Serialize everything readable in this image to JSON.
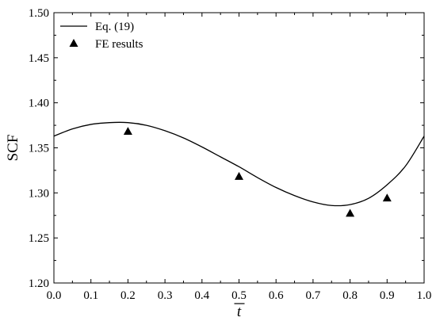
{
  "chart_data": {
    "type": "line",
    "title": "",
    "xlabel": "t",
    "xlabel_overbar": true,
    "ylabel": "SCF",
    "xlim": [
      0.0,
      1.0
    ],
    "ylim": [
      1.2,
      1.5
    ],
    "xticks": [
      "0.0",
      "0.1",
      "0.2",
      "0.3",
      "0.4",
      "0.5",
      "0.6",
      "0.7",
      "0.8",
      "0.9",
      "1.0"
    ],
    "yticks": [
      "1.20",
      "1.25",
      "1.30",
      "1.35",
      "1.40",
      "1.45",
      "1.50"
    ],
    "grid": false,
    "legend_position": "top-left",
    "series": [
      {
        "name": "Eq. (19)",
        "style": "line",
        "color": "#000000",
        "x": [
          0.0,
          0.05,
          0.1,
          0.15,
          0.2,
          0.25,
          0.3,
          0.35,
          0.4,
          0.45,
          0.5,
          0.55,
          0.6,
          0.65,
          0.7,
          0.75,
          0.8,
          0.85,
          0.9,
          0.95,
          1.0
        ],
        "y": [
          1.363,
          1.371,
          1.376,
          1.378,
          1.378,
          1.375,
          1.369,
          1.361,
          1.351,
          1.34,
          1.329,
          1.317,
          1.306,
          1.297,
          1.29,
          1.286,
          1.287,
          1.294,
          1.309,
          1.33,
          1.363
        ]
      },
      {
        "name": "FE results",
        "style": "marker",
        "marker": "triangle-up",
        "color": "#000000",
        "x": [
          0.2,
          0.5,
          0.8,
          0.9
        ],
        "y": [
          1.368,
          1.318,
          1.277,
          1.294
        ]
      }
    ]
  }
}
